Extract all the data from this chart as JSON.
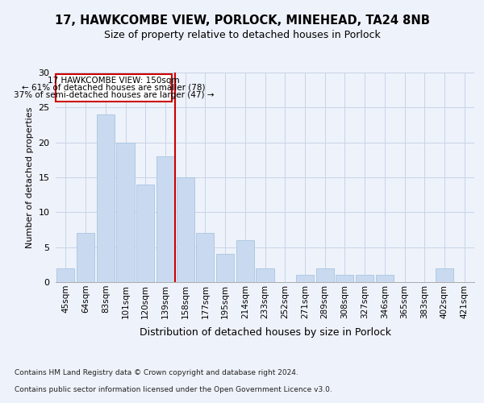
{
  "title_line1": "17, HAWKCOMBE VIEW, PORLOCK, MINEHEAD, TA24 8NB",
  "title_line2": "Size of property relative to detached houses in Porlock",
  "xlabel": "Distribution of detached houses by size in Porlock",
  "ylabel": "Number of detached properties",
  "categories": [
    "45sqm",
    "64sqm",
    "83sqm",
    "101sqm",
    "120sqm",
    "139sqm",
    "158sqm",
    "177sqm",
    "195sqm",
    "214sqm",
    "233sqm",
    "252sqm",
    "271sqm",
    "289sqm",
    "308sqm",
    "327sqm",
    "346sqm",
    "365sqm",
    "383sqm",
    "402sqm",
    "421sqm"
  ],
  "values": [
    2,
    7,
    24,
    20,
    14,
    18,
    15,
    7,
    4,
    6,
    2,
    0,
    1,
    2,
    1,
    1,
    1,
    0,
    0,
    2,
    0
  ],
  "bar_color": "#c9daf0",
  "bar_edge_color": "#a8c4e0",
  "vline_color": "#cc0000",
  "vline_pos": 5.5,
  "annotation_box_edge": "#cc0000",
  "annotation_line1": "17 HAWKCOMBE VIEW: 150sqm",
  "annotation_line2": "← 61% of detached houses are smaller (78)",
  "annotation_line3": "37% of semi-detached houses are larger (47) →",
  "ylim": [
    0,
    30
  ],
  "yticks": [
    0,
    5,
    10,
    15,
    20,
    25,
    30
  ],
  "footer_line1": "Contains HM Land Registry data © Crown copyright and database right 2024.",
  "footer_line2": "Contains public sector information licensed under the Open Government Licence v3.0.",
  "background_color": "#eef2fa",
  "grid_color": "#c8d4e8"
}
